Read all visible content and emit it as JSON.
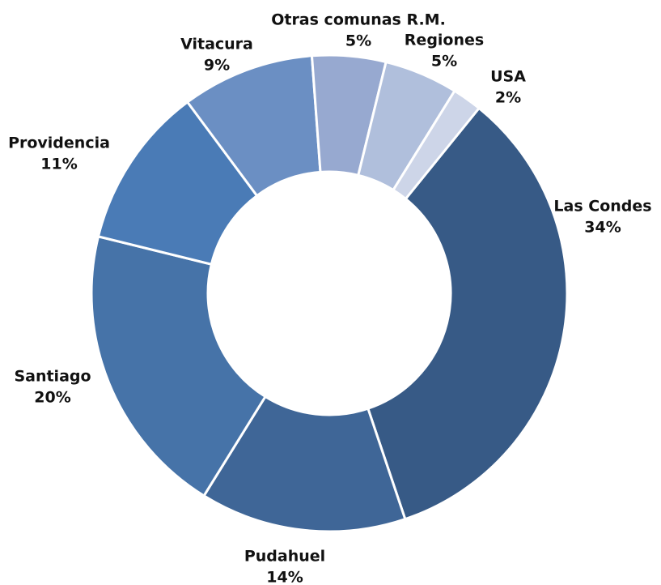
{
  "chart_data": {
    "type": "donut",
    "categories": [
      "Las Condes",
      "Pudahuel",
      "Santiago",
      "Providencia",
      "Vitacura",
      "Otras comunas R.M.",
      "Regiones",
      "USA"
    ],
    "values": [
      34,
      14,
      20,
      11,
      9,
      5,
      5,
      2
    ],
    "value_labels": [
      "34%",
      "14%",
      "20%",
      "11%",
      "9%",
      "5%",
      "5%",
      "2%"
    ],
    "colors": [
      "#375a86",
      "#3f6697",
      "#4673a8",
      "#4a7bb6",
      "#6b8fc3",
      "#97a9d0",
      "#b0bfdc",
      "#cdd5e8"
    ]
  }
}
